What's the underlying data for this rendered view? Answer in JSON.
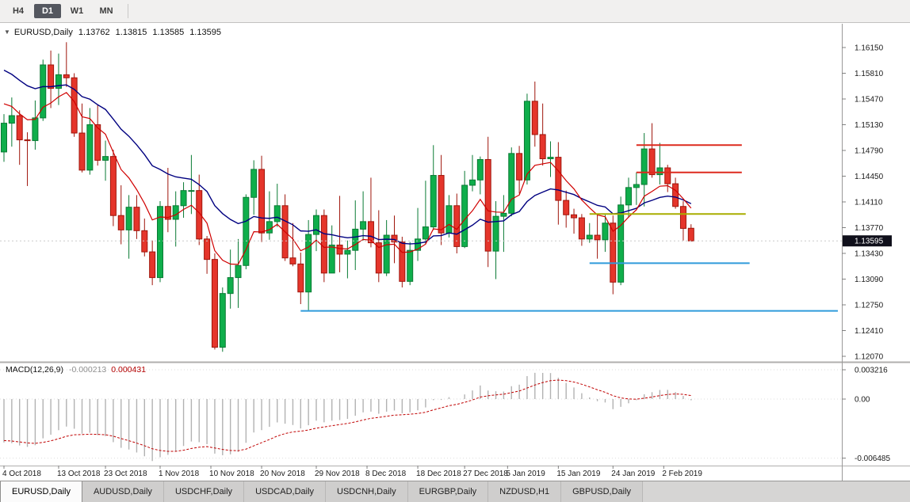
{
  "toolbar": {
    "timeframes": [
      {
        "label": "H4",
        "active": false
      },
      {
        "label": "D1",
        "active": true
      },
      {
        "label": "W1",
        "active": false
      },
      {
        "label": "MN",
        "active": false
      }
    ]
  },
  "chart_title": {
    "symbol": "EURUSD,Daily",
    "open": "1.13762",
    "high": "1.13815",
    "low": "1.13585",
    "close": "1.13595"
  },
  "chart_data": {
    "type": "candlestick",
    "symbol": "EURUSD",
    "period": "Daily",
    "current_price": "1.13595",
    "y_ticks": [
      "1.16150",
      "1.15810",
      "1.15470",
      "1.15130",
      "1.14790",
      "1.14450",
      "1.14110",
      "1.13770",
      "1.13430",
      "1.13090",
      "1.12750",
      "1.12410",
      "1.12070"
    ],
    "x_labels": [
      {
        "text": "4 Oct 2018",
        "i": 0
      },
      {
        "text": "13 Oct 2018",
        "i": 7
      },
      {
        "text": "23 Oct 2018",
        "i": 13
      },
      {
        "text": "1 Nov 2018",
        "i": 20
      },
      {
        "text": "10 Nov 2018",
        "i": 26.5
      },
      {
        "text": "20 Nov 2018",
        "i": 33
      },
      {
        "text": "29 Nov 2018",
        "i": 40
      },
      {
        "text": "8 Dec 2018",
        "i": 46.5
      },
      {
        "text": "18 Dec 2018",
        "i": 53
      },
      {
        "text": "27 Dec 2018",
        "i": 59
      },
      {
        "text": "5 Jan 2019",
        "i": 64.5
      },
      {
        "text": "15 Jan 2019",
        "i": 71
      },
      {
        "text": "24 Jan 2019",
        "i": 78
      },
      {
        "text": "2 Feb 2019",
        "i": 84.5
      }
    ],
    "candles": [
      [
        "2018-10-04",
        1.1477,
        1.1527,
        1.1464,
        1.1515
      ],
      [
        "2018-10-05",
        1.1515,
        1.1549,
        1.1484,
        1.1525
      ],
      [
        "2018-10-08",
        1.1525,
        1.1532,
        1.146,
        1.1493
      ],
      [
        "2018-10-09",
        1.1493,
        1.1503,
        1.1432,
        1.1492
      ],
      [
        "2018-10-10",
        1.1492,
        1.1545,
        1.148,
        1.1522
      ],
      [
        "2018-10-11",
        1.1522,
        1.1599,
        1.1518,
        1.1592
      ],
      [
        "2018-10-12",
        1.1592,
        1.1611,
        1.1535,
        1.1561
      ],
      [
        "2018-10-15",
        1.1561,
        1.1607,
        1.1539,
        1.1579
      ],
      [
        "2018-10-16",
        1.1579,
        1.1622,
        1.1563,
        1.1575
      ],
      [
        "2018-10-17",
        1.1575,
        1.1581,
        1.1497,
        1.1502
      ],
      [
        "2018-10-18",
        1.1502,
        1.1541,
        1.145,
        1.1453
      ],
      [
        "2018-10-19",
        1.1453,
        1.1535,
        1.1447,
        1.1513
      ],
      [
        "2018-10-22",
        1.1513,
        1.1539,
        1.1459,
        1.1466
      ],
      [
        "2018-10-23",
        1.1466,
        1.1492,
        1.1439,
        1.1471
      ],
      [
        "2018-10-24",
        1.1471,
        1.148,
        1.1379,
        1.1393
      ],
      [
        "2018-10-25",
        1.1393,
        1.1433,
        1.1355,
        1.1374
      ],
      [
        "2018-10-26",
        1.1374,
        1.142,
        1.1336,
        1.1404
      ],
      [
        "2018-10-29",
        1.1404,
        1.142,
        1.1362,
        1.1373
      ],
      [
        "2018-10-30",
        1.1373,
        1.1389,
        1.1339,
        1.1345
      ],
      [
        "2018-10-31",
        1.1345,
        1.136,
        1.1301,
        1.1311
      ],
      [
        "2018-11-01",
        1.1311,
        1.1412,
        1.1305,
        1.1405
      ],
      [
        "2018-11-02",
        1.1405,
        1.1456,
        1.1371,
        1.1388
      ],
      [
        "2018-11-05",
        1.1388,
        1.1425,
        1.1352,
        1.1406
      ],
      [
        "2018-11-06",
        1.1406,
        1.1437,
        1.139,
        1.1426
      ],
      [
        "2018-11-07",
        1.1426,
        1.1473,
        1.1395,
        1.1426
      ],
      [
        "2018-11-08",
        1.1426,
        1.1447,
        1.1354,
        1.1362
      ],
      [
        "2018-11-09",
        1.1362,
        1.1366,
        1.1316,
        1.1335
      ],
      [
        "2018-11-12",
        1.1335,
        1.1343,
        1.1216,
        1.1219
      ],
      [
        "2018-11-13",
        1.1219,
        1.1298,
        1.1213,
        1.129
      ],
      [
        "2018-11-14",
        1.129,
        1.1348,
        1.127,
        1.1311
      ],
      [
        "2018-11-15",
        1.1311,
        1.1362,
        1.1271,
        1.1327
      ],
      [
        "2018-11-16",
        1.1327,
        1.1421,
        1.1322,
        1.1417
      ],
      [
        "2018-11-19",
        1.1417,
        1.1466,
        1.1394,
        1.1454
      ],
      [
        "2018-11-20",
        1.1454,
        1.1472,
        1.1358,
        1.137
      ],
      [
        "2018-11-21",
        1.137,
        1.1425,
        1.1361,
        1.1385
      ],
      [
        "2018-11-22",
        1.1385,
        1.1435,
        1.1378,
        1.1406
      ],
      [
        "2018-11-23",
        1.1406,
        1.1421,
        1.1333,
        1.1337
      ],
      [
        "2018-11-26",
        1.1337,
        1.1383,
        1.1326,
        1.1329
      ],
      [
        "2018-11-27",
        1.1329,
        1.1344,
        1.1276,
        1.1292
      ],
      [
        "2018-11-28",
        1.1292,
        1.1387,
        1.1267,
        1.1368
      ],
      [
        "2018-11-29",
        1.1368,
        1.1401,
        1.1346,
        1.1393
      ],
      [
        "2018-11-30",
        1.1393,
        1.1401,
        1.1305,
        1.1317
      ],
      [
        "2018-12-03",
        1.1317,
        1.138,
        1.1317,
        1.1354
      ],
      [
        "2018-12-04",
        1.1354,
        1.1419,
        1.1318,
        1.1342
      ],
      [
        "2018-12-05",
        1.1342,
        1.136,
        1.131,
        1.1347
      ],
      [
        "2018-12-06",
        1.1347,
        1.1413,
        1.1321,
        1.1375
      ],
      [
        "2018-12-07",
        1.1375,
        1.1425,
        1.136,
        1.1385
      ],
      [
        "2018-12-10",
        1.1385,
        1.1443,
        1.1351,
        1.1357
      ],
      [
        "2018-12-11",
        1.1357,
        1.14,
        1.1305,
        1.1317
      ],
      [
        "2018-12-12",
        1.1317,
        1.1387,
        1.1313,
        1.1367
      ],
      [
        "2018-12-13",
        1.1367,
        1.1393,
        1.133,
        1.1358
      ],
      [
        "2018-12-14",
        1.1358,
        1.1365,
        1.1298,
        1.1306
      ],
      [
        "2018-12-17",
        1.1306,
        1.1358,
        1.1301,
        1.1347
      ],
      [
        "2018-12-18",
        1.1347,
        1.1403,
        1.1333,
        1.1362
      ],
      [
        "2018-12-19",
        1.1362,
        1.1439,
        1.1355,
        1.1378
      ],
      [
        "2018-12-20",
        1.1378,
        1.1486,
        1.1374,
        1.1446
      ],
      [
        "2018-12-21",
        1.1446,
        1.1473,
        1.1354,
        1.137
      ],
      [
        "2018-12-24",
        1.137,
        1.142,
        1.1364,
        1.1406
      ],
      [
        "2018-12-26",
        1.1406,
        1.1422,
        1.1343,
        1.1352
      ],
      [
        "2018-12-27",
        1.1352,
        1.1452,
        1.135,
        1.1433
      ],
      [
        "2018-12-28",
        1.1433,
        1.1473,
        1.1425,
        1.144
      ],
      [
        "2018-12-31",
        1.144,
        1.1471,
        1.1421,
        1.1467
      ],
      [
        "2019-01-02",
        1.1467,
        1.1497,
        1.1325,
        1.1346
      ],
      [
        "2019-01-03",
        1.1346,
        1.1412,
        1.1309,
        1.1392
      ],
      [
        "2019-01-04",
        1.1392,
        1.142,
        1.1345,
        1.1396
      ],
      [
        "2019-01-07",
        1.1396,
        1.1483,
        1.1392,
        1.1475
      ],
      [
        "2019-01-08",
        1.1475,
        1.1485,
        1.1422,
        1.144
      ],
      [
        "2019-01-09",
        1.144,
        1.1554,
        1.1434,
        1.1544
      ],
      [
        "2019-01-10",
        1.1544,
        1.157,
        1.1484,
        1.15
      ],
      [
        "2019-01-11",
        1.15,
        1.1541,
        1.1459,
        1.1468
      ],
      [
        "2019-01-14",
        1.1468,
        1.1491,
        1.1444,
        1.147
      ],
      [
        "2019-01-15",
        1.147,
        1.149,
        1.1381,
        1.1413
      ],
      [
        "2019-01-16",
        1.1413,
        1.1426,
        1.1377,
        1.1394
      ],
      [
        "2019-01-17",
        1.1394,
        1.1402,
        1.1369,
        1.139
      ],
      [
        "2019-01-18",
        1.139,
        1.1395,
        1.1353,
        1.1362
      ],
      [
        "2019-01-21",
        1.1362,
        1.1383,
        1.1357,
        1.1367
      ],
      [
        "2019-01-22",
        1.1367,
        1.1395,
        1.1336,
        1.1361
      ],
      [
        "2019-01-23",
        1.1361,
        1.1394,
        1.1345,
        1.1383
      ],
      [
        "2019-01-24",
        1.1383,
        1.1393,
        1.1289,
        1.1305
      ],
      [
        "2019-01-25",
        1.1305,
        1.1418,
        1.1301,
        1.1407
      ],
      [
        "2019-01-28",
        1.1407,
        1.1443,
        1.139,
        1.143
      ],
      [
        "2019-01-29",
        1.143,
        1.145,
        1.1407,
        1.1434
      ],
      [
        "2019-01-30",
        1.1434,
        1.1502,
        1.1405,
        1.1481
      ],
      [
        "2019-01-31",
        1.1481,
        1.1515,
        1.1443,
        1.1447
      ],
      [
        "2019-02-01",
        1.1447,
        1.1489,
        1.1434,
        1.1456
      ],
      [
        "2019-02-04",
        1.1456,
        1.146,
        1.1424,
        1.1435
      ],
      [
        "2019-02-05",
        1.1435,
        1.1443,
        1.1402,
        1.1405
      ],
      [
        "2019-02-06",
        1.1405,
        1.1412,
        1.136,
        1.1376
      ],
      [
        "2019-02-07",
        1.13762,
        1.13815,
        1.13585,
        1.13595
      ]
    ],
    "colors": {
      "up": {
        "body": "#0fae4b",
        "edge": "#0a7a34"
      },
      "down": {
        "body": "#e5352b",
        "edge": "#9f150b"
      },
      "background": "#ffffff"
    },
    "ma": {
      "fast": {
        "type": "ema",
        "period": 8,
        "seed": 1.1548,
        "color": "#d00000"
      },
      "slow": {
        "type": "ema",
        "period": 21,
        "seed": 1.1592,
        "color": "#000080"
      }
    },
    "hlines": [
      {
        "price": 1.1486,
        "i1": 81,
        "i2": 94.5,
        "color": "#dd2a1e",
        "width": 2
      },
      {
        "price": 1.145,
        "i1": 81,
        "i2": 94.5,
        "color": "#dd2a1e",
        "width": 2
      },
      {
        "price": 1.1395,
        "i1": 75,
        "i2": 95,
        "color": "#a8ad00",
        "width": 2
      },
      {
        "price": 1.133,
        "i1": 75,
        "i2": 95.5,
        "color": "#2f9bdb",
        "width": 2
      },
      {
        "price": 1.1267,
        "i1": 38,
        "i2": 106.8,
        "color": "#2f9bdb",
        "width": 2
      }
    ],
    "macd": {
      "label": "MACD(12,26,9)",
      "value_main": "-0.000213",
      "value_signal": "0.000431",
      "fast": 12,
      "slow": 26,
      "signal": 9,
      "seeds": {
        "ema_fast": 1.159,
        "ema_slow": 1.1635,
        "signal": -0.0045
      },
      "scale": [
        {
          "text": "0.003216",
          "v": 0.003216
        },
        {
          "text": "0.00",
          "v": 0
        },
        {
          "text": "-0.006485",
          "v": -0.006485
        }
      ],
      "hist_color": "#b2b2b2",
      "signal_color": "#c00000"
    }
  },
  "tabs": [
    {
      "label": "EURUSD,Daily",
      "active": true
    },
    {
      "label": "AUDUSD,Daily",
      "active": false
    },
    {
      "label": "USDCHF,Daily",
      "active": false
    },
    {
      "label": "USDCAD,Daily",
      "active": false
    },
    {
      "label": "USDCNH,Daily",
      "active": false
    },
    {
      "label": "EURGBP,Daily",
      "active": false
    },
    {
      "label": "NZDUSD,H1",
      "active": false
    },
    {
      "label": "GBPUSD,Daily",
      "active": false
    }
  ]
}
